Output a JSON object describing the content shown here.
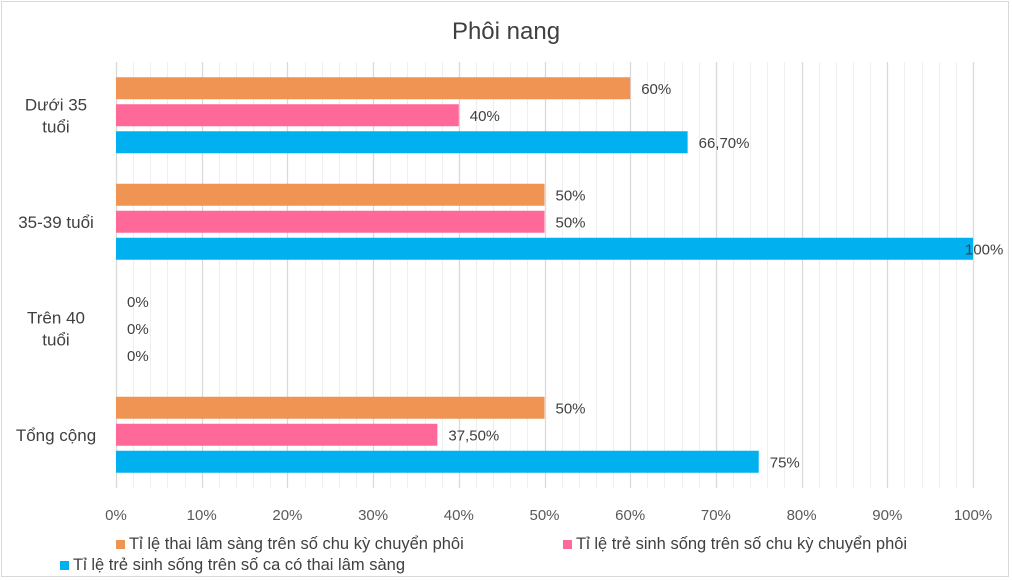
{
  "chart_data": {
    "type": "bar",
    "orientation": "horizontal",
    "title": "Phôi nang",
    "categories": [
      "Dưới 35 tuổi",
      "35-39 tuổi",
      "Trên 40 tuổi",
      "Tổng cộng"
    ],
    "category_label_lines": [
      [
        "Dưới 35",
        "tuổi"
      ],
      [
        "35-39 tuổi"
      ],
      [
        "Trên 40",
        "tuổi"
      ],
      [
        "Tổng cộng"
      ]
    ],
    "series": [
      {
        "name": "Tỉ lệ thai lâm sàng trên số chu kỳ chuyển phôi",
        "color": "#EF9452",
        "values": [
          60,
          50,
          0,
          50
        ],
        "labels": [
          "60%",
          "50%",
          "0%",
          "50%"
        ]
      },
      {
        "name": "Tỉ lệ trẻ sinh sống trên số chu kỳ chuyển phôi",
        "color": "#FF6999",
        "values": [
          40,
          50,
          0,
          37.5
        ],
        "labels": [
          "40%",
          "50%",
          "0%",
          "37,50%"
        ]
      },
      {
        "name": "Tỉ lệ trẻ sinh sống trên số ca có thai lâm sàng",
        "color": "#00B0EF",
        "values": [
          66.7,
          100,
          0,
          75
        ],
        "labels": [
          "66,70%",
          "100%",
          "0%",
          "75%"
        ]
      }
    ],
    "xlim": [
      0,
      100
    ],
    "x_ticks": [
      "0%",
      "10%",
      "20%",
      "30%",
      "40%",
      "50%",
      "60%",
      "70%",
      "80%",
      "90%",
      "100%"
    ],
    "xlabel": "",
    "ylabel": "",
    "grid": true,
    "legend_position": "bottom"
  }
}
